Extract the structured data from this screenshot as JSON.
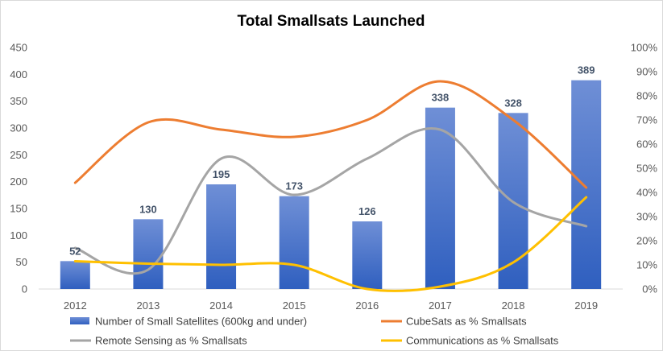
{
  "chart_data": {
    "type": "bar",
    "title": "Total Smallsats Launched",
    "categories": [
      "2012",
      "2013",
      "2014",
      "2015",
      "2016",
      "2017",
      "2018",
      "2019"
    ],
    "bar_series": {
      "name": "Number of Small Satellites (600kg and under)",
      "values": [
        52,
        130,
        195,
        173,
        126,
        338,
        328,
        389
      ],
      "data_labels": [
        "52",
        "130",
        "195",
        "173",
        "126",
        "338",
        "328",
        "389"
      ],
      "color": "#4472c4"
    },
    "line_series": [
      {
        "name": "CubeSats as % Smallsats",
        "values": [
          44,
          69,
          66,
          63,
          70,
          86,
          70,
          42
        ],
        "color": "#ed7d31",
        "axis": "secondary"
      },
      {
        "name": "Remote Sensing as % Smallsats",
        "values": [
          17,
          8,
          54,
          39,
          54,
          66,
          36,
          26
        ],
        "color": "#a5a5a5",
        "axis": "secondary"
      },
      {
        "name": "Communications as % Smallsats",
        "values": [
          11.5,
          10.5,
          10,
          10,
          0,
          1,
          11,
          38
        ],
        "color": "#ffc000",
        "axis": "secondary"
      }
    ],
    "y_axis": {
      "min": 0,
      "max": 450,
      "step": 50,
      "tick_labels": [
        "0",
        "50",
        "100",
        "150",
        "200",
        "250",
        "300",
        "350",
        "400",
        "450"
      ]
    },
    "y2_axis": {
      "min": 0,
      "max": 100,
      "step": 10,
      "tick_labels": [
        "0%",
        "10%",
        "20%",
        "30%",
        "40%",
        "50%",
        "60%",
        "70%",
        "80%",
        "90%",
        "100%"
      ]
    },
    "grid": false,
    "legend_position": "bottom",
    "smooth_lines": true
  }
}
